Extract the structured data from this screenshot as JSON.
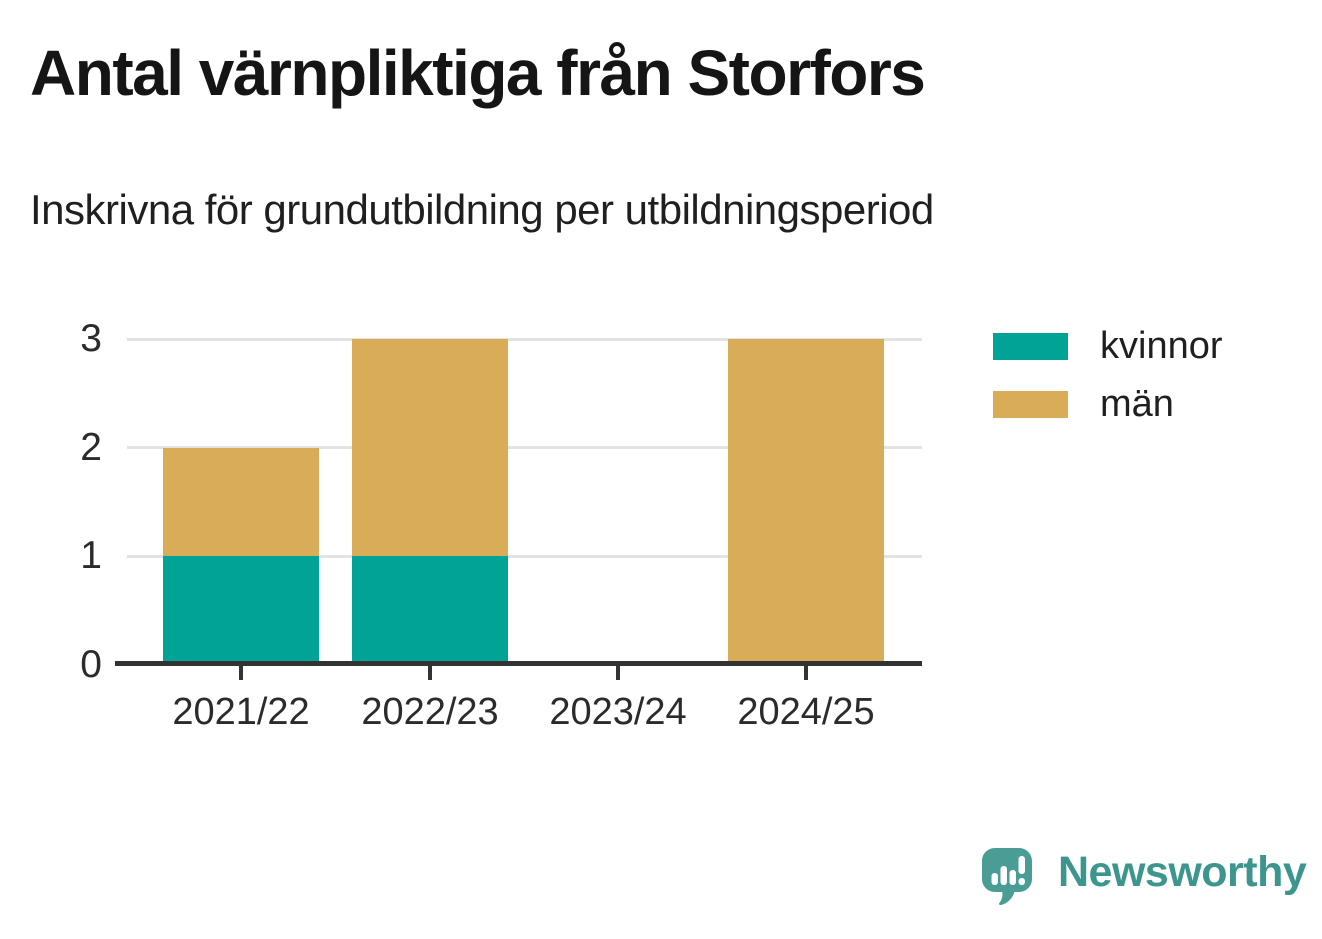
{
  "chart_data": {
    "type": "bar",
    "stacked": true,
    "title": "Antal värnpliktiga från Storfors",
    "subtitle": "Inskrivna för grundutbildning per utbildningsperiod",
    "categories": [
      "2021/22",
      "2022/23",
      "2023/24",
      "2024/25"
    ],
    "series": [
      {
        "name": "kvinnor",
        "color": "#00A396",
        "values": [
          1,
          1,
          0,
          0
        ]
      },
      {
        "name": "män",
        "color": "#D9AD57",
        "values": [
          1,
          2,
          0,
          3
        ]
      }
    ],
    "xlabel": "",
    "ylabel": "",
    "ylim": [
      0,
      3
    ],
    "yticks": [
      0,
      1,
      2,
      3
    ],
    "grid": true,
    "legend_position": "right"
  },
  "colors": {
    "grid": "#E3E3E3",
    "axis": "#333333",
    "title_text": "#151515",
    "body_text": "#2B2B2B"
  },
  "branding": {
    "logo_text": "Newsworthy",
    "logo_text_color": "#3D968E",
    "logo_icon_color": "#4A9D94",
    "logo_icon": "speech-bubble-bar-chart-icon"
  }
}
